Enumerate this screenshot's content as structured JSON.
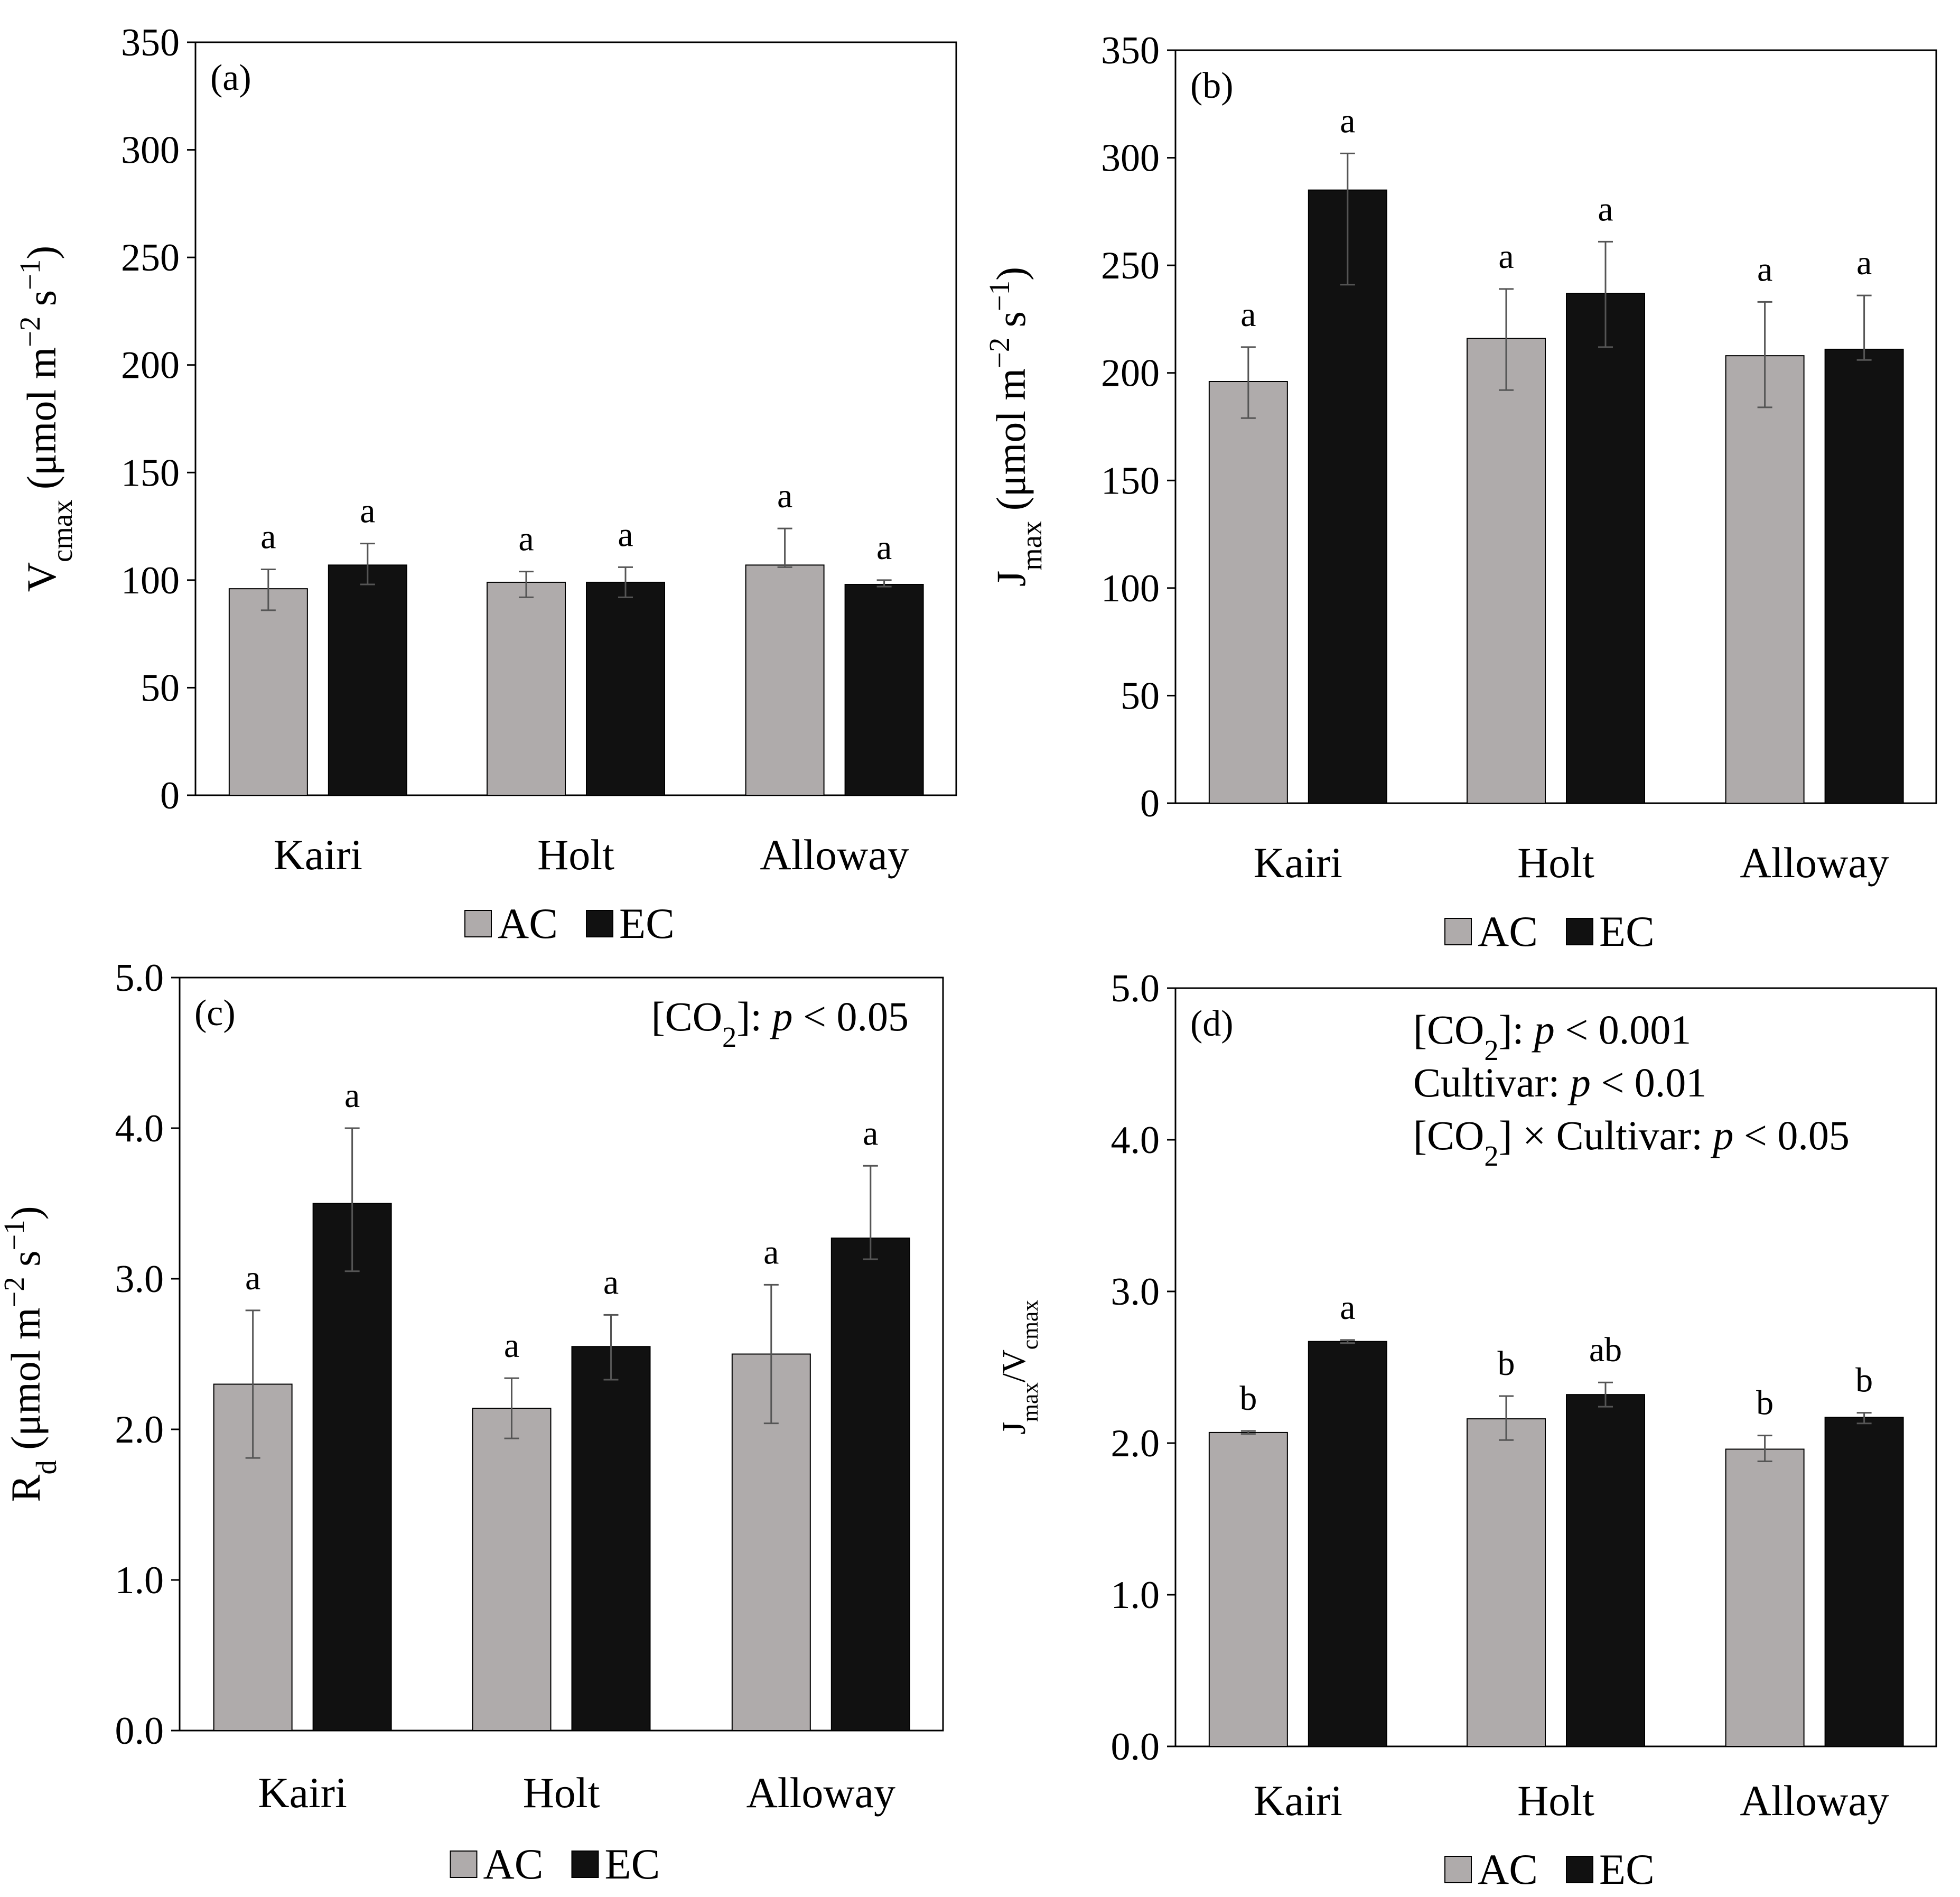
{
  "chart_data": [
    {
      "type": "bar",
      "panel_label": "(a)",
      "title": "",
      "ylabel": {
        "main": "V",
        "sub": "cmax",
        "rest_a": " (μmol m",
        "sup1": "−2",
        "rest_b": " s",
        "sup2": "−1",
        "rest_c": ")"
      },
      "ylim": [
        0,
        350
      ],
      "yticks": [
        "0",
        "50",
        "100",
        "150",
        "200",
        "250",
        "300",
        "350"
      ],
      "ytick_values": [
        0,
        50,
        100,
        150,
        200,
        250,
        300,
        350
      ],
      "categories": [
        "Kairi",
        "Holt",
        "Alloway"
      ],
      "series": [
        {
          "name": "AC",
          "values": [
            96,
            99,
            107
          ],
          "err_low": [
            10,
            7,
            1
          ],
          "err_high": [
            9,
            5,
            17
          ],
          "letters": [
            "a",
            "a",
            "a"
          ]
        },
        {
          "name": "EC",
          "values": [
            107,
            99,
            98
          ],
          "err_low": [
            9,
            7,
            1
          ],
          "err_high": [
            10,
            7,
            2
          ],
          "letters": [
            "a",
            "a",
            "a"
          ]
        }
      ],
      "legend": [
        "AC",
        "EC"
      ],
      "stats": []
    },
    {
      "type": "bar",
      "panel_label": "(b)",
      "title": "",
      "ylabel": {
        "main": "J",
        "sub": "max",
        "rest_a": "  (μmol m",
        "sup1": "−2",
        "rest_b": " s",
        "sup2": "−1",
        "rest_c": ")"
      },
      "ylim": [
        0,
        350
      ],
      "yticks": [
        "0",
        "50",
        "100",
        "150",
        "200",
        "250",
        "300",
        "350"
      ],
      "ytick_values": [
        0,
        50,
        100,
        150,
        200,
        250,
        300,
        350
      ],
      "categories": [
        "Kairi",
        "Holt",
        "Alloway"
      ],
      "series": [
        {
          "name": "AC",
          "values": [
            196,
            216,
            208
          ],
          "err_low": [
            17,
            24,
            24
          ],
          "err_high": [
            16,
            23,
            25
          ],
          "letters": [
            "a",
            "a",
            "a"
          ]
        },
        {
          "name": "EC",
          "values": [
            285,
            237,
            211
          ],
          "err_low": [
            44,
            25,
            5
          ],
          "err_high": [
            17,
            24,
            25
          ],
          "letters": [
            "a",
            "a",
            "a"
          ]
        }
      ],
      "legend": [
        "AC",
        "EC"
      ],
      "stats": []
    },
    {
      "type": "bar",
      "panel_label": "(c)",
      "title": "",
      "ylabel": {
        "main": "R",
        "sub": "d",
        "rest_a": " (μmol m",
        "sup1": "−2",
        "rest_b": " s",
        "sup2": "−1",
        "rest_c": ")"
      },
      "ylim": [
        0,
        5
      ],
      "yticks": [
        "0.0",
        "1.0",
        "2.0",
        "3.0",
        "4.0",
        "5.0"
      ],
      "ytick_values": [
        0,
        1,
        2,
        3,
        4,
        5
      ],
      "categories": [
        "Kairi",
        "Holt",
        "Alloway"
      ],
      "series": [
        {
          "name": "AC",
          "values": [
            2.3,
            2.14,
            2.5
          ],
          "err_low": [
            0.49,
            0.2,
            0.46
          ],
          "err_high": [
            0.49,
            0.2,
            0.46
          ],
          "letters": [
            "a",
            "a",
            "a"
          ]
        },
        {
          "name": "EC",
          "values": [
            3.5,
            2.55,
            3.27
          ],
          "err_low": [
            0.45,
            0.22,
            0.14
          ],
          "err_high": [
            0.5,
            0.21,
            0.48
          ],
          "letters": [
            "a",
            "a",
            "a"
          ]
        }
      ],
      "legend": [
        "AC",
        "EC"
      ],
      "stats": [
        {
          "pre": "[CO",
          "sub": "2",
          "post": "]: ",
          "p": "p",
          "tail": " < 0.05"
        }
      ]
    },
    {
      "type": "bar",
      "panel_label": "(d)",
      "title": "",
      "ylabel": {
        "main": "J",
        "sub": "max",
        "rest_a": "/V",
        "sub2": "cmax"
      },
      "ylim": [
        0,
        5
      ],
      "yticks": [
        "0.0",
        "1.0",
        "2.0",
        "3.0",
        "4.0",
        "5.0"
      ],
      "ytick_values": [
        0,
        1,
        2,
        3,
        4,
        5
      ],
      "categories": [
        "Kairi",
        "Holt",
        "Alloway"
      ],
      "series": [
        {
          "name": "AC",
          "values": [
            2.07,
            2.16,
            1.96
          ],
          "err_low": [
            0.01,
            0.14,
            0.08
          ],
          "err_high": [
            0.01,
            0.15,
            0.09
          ],
          "letters": [
            "b",
            "b",
            "b"
          ]
        },
        {
          "name": "EC",
          "values": [
            2.67,
            2.32,
            2.17
          ],
          "err_low": [
            0.01,
            0.08,
            0.04
          ],
          "err_high": [
            0.01,
            0.08,
            0.03
          ],
          "letters": [
            "a",
            "ab",
            "b"
          ]
        }
      ],
      "legend": [
        "AC",
        "EC"
      ],
      "stats": [
        {
          "pre": "[CO",
          "sub": "2",
          "post": "]: ",
          "p": "p",
          "tail": " < 0.001"
        },
        {
          "pre": "Cultivar: ",
          "sub": "",
          "post": "",
          "p": "p",
          "tail": " < 0.01"
        },
        {
          "pre": "[CO",
          "sub": "2",
          "post": "] × Cultivar: ",
          "p": "p",
          "tail": " < 0.05"
        }
      ]
    }
  ],
  "colors": {
    "ac": "#afabab",
    "ec": "#111111",
    "axis": "#000000",
    "error": "#555555"
  }
}
